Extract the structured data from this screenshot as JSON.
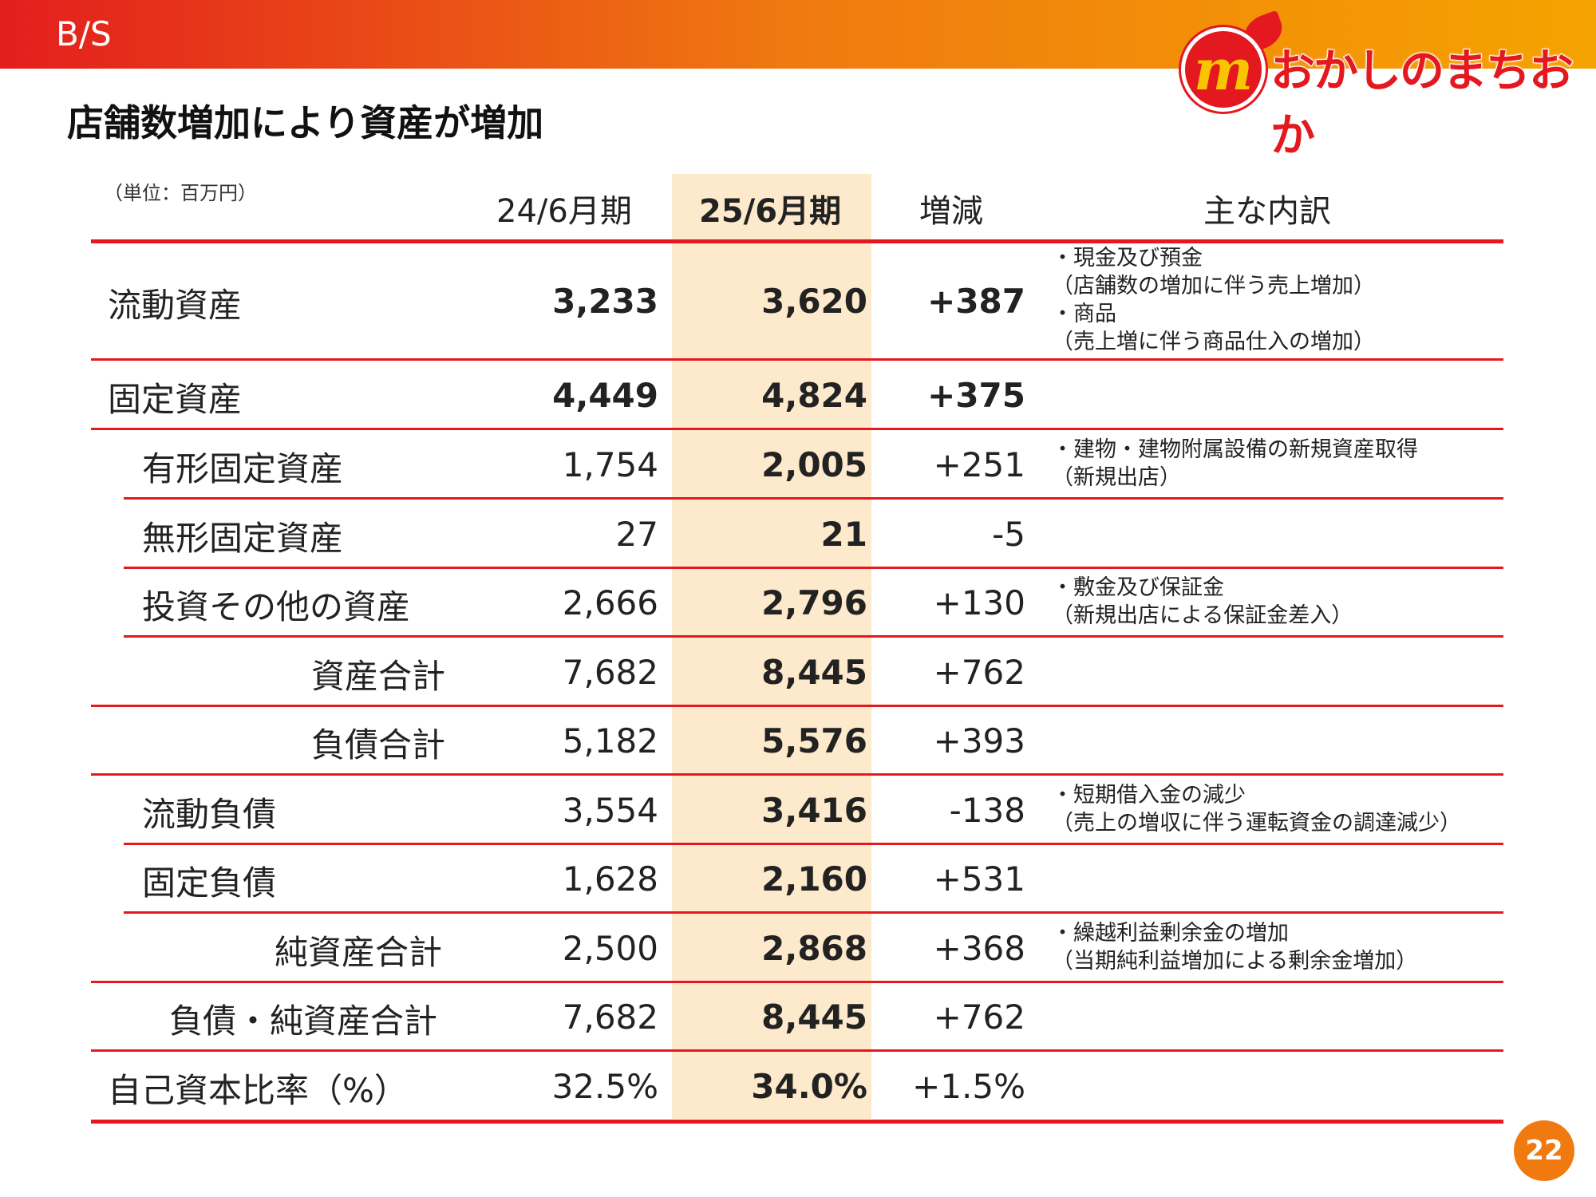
{
  "header": {
    "section_label": "B/S",
    "logo_text": "おかしのまちおか",
    "logo_mark": "m"
  },
  "title": "店舗数増加により資産が増加",
  "unit_note": "（単位：百万円）",
  "columns": {
    "prev": "24/6月期",
    "curr": "25/6月期",
    "diff": "増減",
    "notes": "主な内訳"
  },
  "rows": [
    {
      "label": "流動資産",
      "prev": "3,233",
      "curr": "3,620",
      "diff": "+387",
      "notes": [
        "・現金及び預金",
        "（店舗数の増加に伴う売上増加）",
        "・商品",
        "（売上増に伴う商品仕入の増加）"
      ]
    },
    {
      "label": "固定資産",
      "prev": "4,449",
      "curr": "4,824",
      "diff": "+375",
      "notes": []
    },
    {
      "label": "有形固定資産",
      "prev": "1,754",
      "curr": "2,005",
      "diff": "+251",
      "notes": [
        "・建物・建物附属設備の新規資産取得",
        "（新規出店）"
      ]
    },
    {
      "label": "無形固定資産",
      "prev": "27",
      "curr": "21",
      "diff": "-5",
      "notes": []
    },
    {
      "label": "投資その他の資産",
      "prev": "2,666",
      "curr": "2,796",
      "diff": "+130",
      "notes": [
        "・敷金及び保証金",
        "（新規出店による保証金差入）"
      ]
    },
    {
      "label": "資産合計",
      "prev": "7,682",
      "curr": "8,445",
      "diff": "+762",
      "notes": []
    },
    {
      "label": "負債合計",
      "prev": "5,182",
      "curr": "5,576",
      "diff": "+393",
      "notes": []
    },
    {
      "label": "流動負債",
      "prev": "3,554",
      "curr": "3,416",
      "diff": "-138",
      "notes": [
        "・短期借入金の減少",
        "（売上の増収に伴う運転資金の調達減少）"
      ]
    },
    {
      "label": "固定負債",
      "prev": "1,628",
      "curr": "2,160",
      "diff": "+531",
      "notes": []
    },
    {
      "label": "純資産合計",
      "prev": "2,500",
      "curr": "2,868",
      "diff": "+368",
      "notes": [
        "・繰越利益剰余金の増加",
        "（当期純利益増加による剰余金増加）"
      ]
    },
    {
      "label": "負債・純資産合計",
      "prev": "7,682",
      "curr": "8,445",
      "diff": "+762",
      "notes": []
    },
    {
      "label": "自己資本比率（%）",
      "prev": "32.5%",
      "curr": "34.0%",
      "diff": "+1.5%",
      "notes": []
    }
  ],
  "page_number": "22",
  "colors": {
    "accent_red": "#e4191f",
    "highlight": "#fde9cc",
    "badge": "#f07a10"
  }
}
